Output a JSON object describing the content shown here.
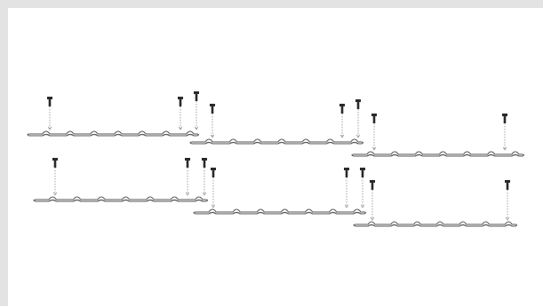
{
  "figure": {
    "subject": "roof-sheet-screw-fixing-layout",
    "colors": {
      "frame": "#e3e3e3",
      "background": "#ffffff",
      "sheet_stroke": "#555555",
      "screw_fill": "#2a2a2a",
      "guide_line": "#9a9a9a"
    },
    "rows": [
      {
        "sheets_per_row": 3,
        "screws_per_sheet": 3
      },
      {
        "sheets_per_row": 3,
        "screws_per_sheet": 3
      }
    ]
  }
}
